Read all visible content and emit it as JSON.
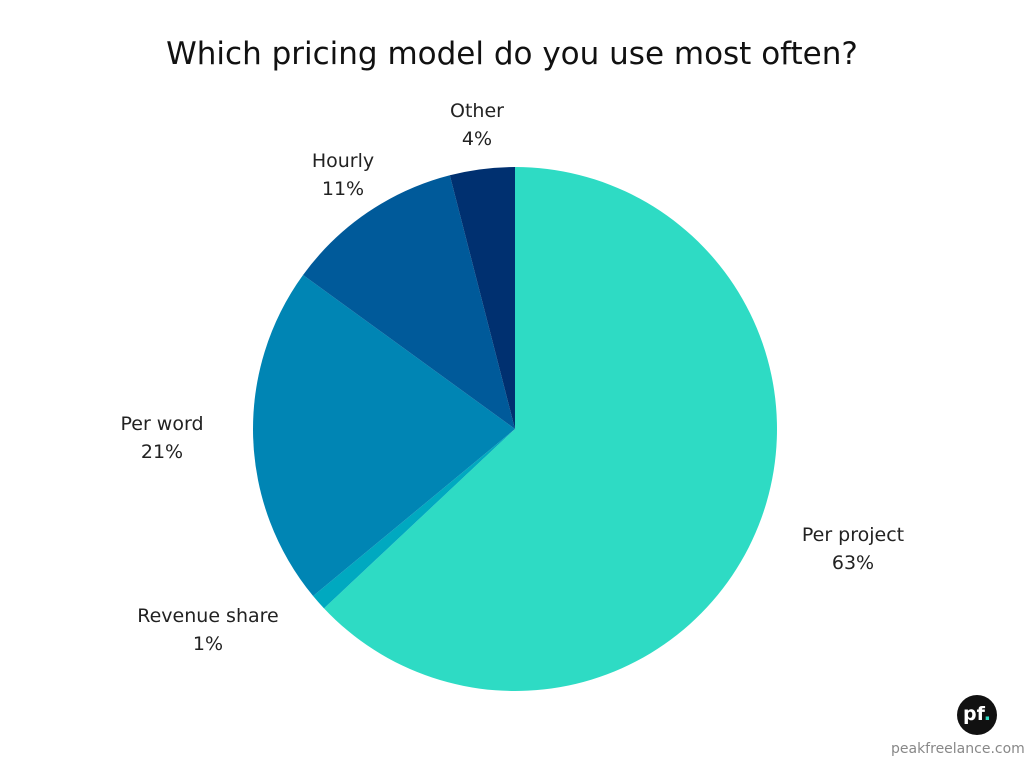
{
  "chart_data": {
    "type": "pie",
    "title": "Which pricing model do you use most often?",
    "start": "top",
    "direction": "clockwise",
    "slices": [
      {
        "label": "Per project",
        "value": 63,
        "display": "63%",
        "color": "#2edbc4"
      },
      {
        "label": "Revenue share",
        "value": 1,
        "display": "1%",
        "color": "#00a9c0"
      },
      {
        "label": "Per word",
        "value": 21,
        "display": "21%",
        "color": "#0085b4"
      },
      {
        "label": "Hourly",
        "value": 11,
        "display": "11%",
        "color": "#005a9a"
      },
      {
        "label": "Other",
        "value": 4,
        "display": "4%",
        "color": "#003070"
      }
    ]
  },
  "branding": {
    "logo_text": "pf",
    "site": "peakfreelance.com"
  }
}
